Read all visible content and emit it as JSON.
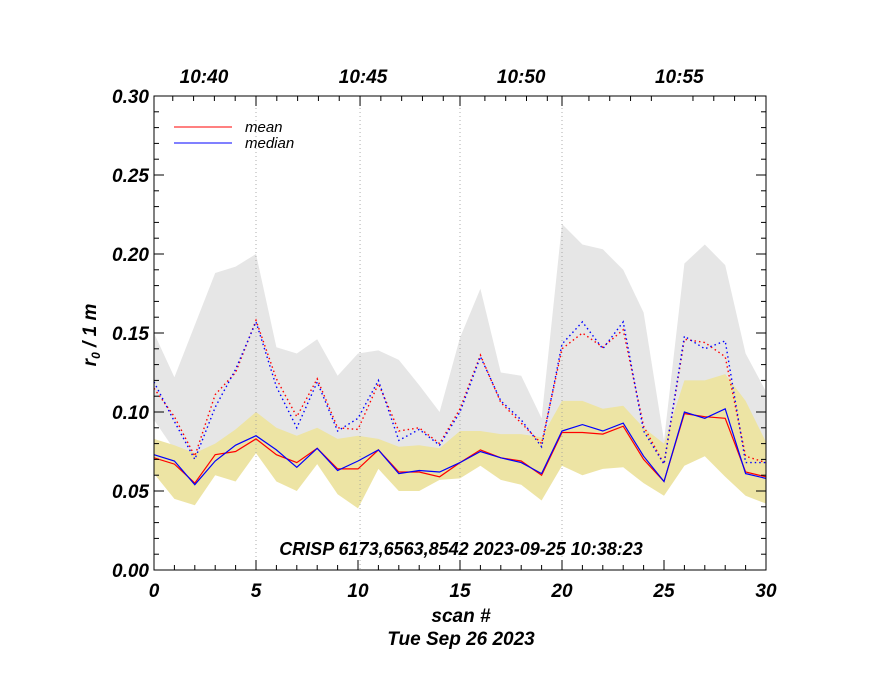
{
  "chart_data": {
    "type": "line",
    "xlabel": "scan #",
    "ylabel_main": "r",
    "ylabel_sub": "0",
    "ylabel_rest": " / 1 m",
    "date_label": "Tue Sep 26 2023",
    "annotation": "CRISP 6173,6563,8542 2023-09-25 10:38:23",
    "xlim": [
      0,
      30
    ],
    "ylim": [
      0,
      0.3
    ],
    "x_ticks": [
      {
        "value": 0,
        "label": "0"
      },
      {
        "value": 5,
        "label": "5"
      },
      {
        "value": 10,
        "label": "10"
      },
      {
        "value": 15,
        "label": "15"
      },
      {
        "value": 20,
        "label": "20"
      },
      {
        "value": 25,
        "label": "25"
      },
      {
        "value": 30,
        "label": "30"
      }
    ],
    "y_ticks": [
      {
        "value": 0.0,
        "label": "0.00"
      },
      {
        "value": 0.05,
        "label": "0.05"
      },
      {
        "value": 0.1,
        "label": "0.10"
      },
      {
        "value": 0.15,
        "label": "0.15"
      },
      {
        "value": 0.2,
        "label": "0.20"
      },
      {
        "value": 0.25,
        "label": "0.25"
      },
      {
        "value": 0.3,
        "label": "0.30"
      }
    ],
    "top_ticks": [
      {
        "value": 5.0,
        "label": "10:40",
        "label_pos": 2.45
      },
      {
        "value": 10.1,
        "label": "10:45",
        "label_pos": 10.25
      },
      {
        "value": 15.0,
        "label": "10:50",
        "label_pos": 18.0
      },
      {
        "value": 20.0,
        "label": "10:55",
        "label_pos": 25.75
      }
    ],
    "x": [
      0,
      1,
      2,
      3,
      4,
      5,
      6,
      7,
      8,
      9,
      10,
      11,
      12,
      13,
      14,
      15,
      16,
      17,
      18,
      19,
      20,
      21,
      22,
      23,
      24,
      25,
      26,
      27,
      28,
      29,
      30
    ],
    "band_gray": {
      "upper": [
        0.15,
        0.122,
        0.155,
        0.188,
        0.192,
        0.2,
        0.141,
        0.137,
        0.146,
        0.123,
        0.137,
        0.139,
        0.133,
        0.117,
        0.1,
        0.147,
        0.178,
        0.125,
        0.123,
        0.096,
        0.219,
        0.206,
        0.203,
        0.19,
        0.163,
        0.082,
        0.194,
        0.206,
        0.193,
        0.137,
        0.113
      ],
      "lower": [
        0.095,
        0.076,
        0.057,
        0.067,
        0.078,
        0.091,
        0.078,
        0.072,
        0.083,
        0.064,
        0.08,
        0.081,
        0.07,
        0.069,
        0.063,
        0.079,
        0.082,
        0.081,
        0.081,
        0.069,
        0.088,
        0.091,
        0.091,
        0.096,
        0.082,
        0.062,
        0.091,
        0.099,
        0.091,
        0.066,
        0.058
      ]
    },
    "band_yellow": {
      "upper": [
        0.083,
        0.079,
        0.074,
        0.08,
        0.089,
        0.1,
        0.09,
        0.085,
        0.09,
        0.083,
        0.085,
        0.083,
        0.078,
        0.079,
        0.077,
        0.088,
        0.088,
        0.086,
        0.086,
        0.084,
        0.107,
        0.107,
        0.102,
        0.104,
        0.09,
        0.08,
        0.12,
        0.12,
        0.124,
        0.107,
        0.081
      ],
      "lower": [
        0.061,
        0.045,
        0.041,
        0.06,
        0.056,
        0.074,
        0.056,
        0.05,
        0.067,
        0.048,
        0.039,
        0.064,
        0.05,
        0.05,
        0.057,
        0.058,
        0.066,
        0.057,
        0.054,
        0.044,
        0.066,
        0.06,
        0.064,
        0.065,
        0.055,
        0.047,
        0.066,
        0.072,
        0.059,
        0.047,
        0.042
      ]
    },
    "series": [
      {
        "name": "mean",
        "color": "#ff0000",
        "style": "solid",
        "values": [
          0.071,
          0.067,
          0.055,
          0.073,
          0.075,
          0.083,
          0.073,
          0.068,
          0.077,
          0.064,
          0.064,
          0.076,
          0.062,
          0.062,
          0.059,
          0.068,
          0.076,
          0.071,
          0.069,
          0.06,
          0.087,
          0.087,
          0.086,
          0.091,
          0.07,
          0.056,
          0.099,
          0.097,
          0.096,
          0.062,
          0.059
        ]
      },
      {
        "name": "median",
        "color": "#0000ff",
        "style": "solid",
        "values": [
          0.073,
          0.069,
          0.054,
          0.069,
          0.079,
          0.085,
          0.076,
          0.065,
          0.077,
          0.063,
          0.069,
          0.076,
          0.061,
          0.063,
          0.062,
          0.068,
          0.075,
          0.071,
          0.068,
          0.061,
          0.088,
          0.092,
          0.088,
          0.093,
          0.072,
          0.056,
          0.1,
          0.096,
          0.102,
          0.061,
          0.058
        ]
      },
      {
        "name": "mean (dotted)",
        "color": "#ff0000",
        "style": "dotted",
        "values": [
          0.115,
          0.097,
          0.072,
          0.111,
          0.125,
          0.158,
          0.121,
          0.097,
          0.121,
          0.09,
          0.089,
          0.118,
          0.088,
          0.09,
          0.08,
          0.102,
          0.136,
          0.106,
          0.093,
          0.08,
          0.14,
          0.15,
          0.141,
          0.152,
          0.091,
          0.067,
          0.146,
          0.144,
          0.135,
          0.072,
          0.068
        ]
      },
      {
        "name": "median (dotted)",
        "color": "#0000ff",
        "style": "dotted",
        "values": [
          0.119,
          0.094,
          0.07,
          0.103,
          0.127,
          0.157,
          0.116,
          0.09,
          0.119,
          0.088,
          0.096,
          0.12,
          0.082,
          0.089,
          0.079,
          0.1,
          0.135,
          0.107,
          0.095,
          0.078,
          0.143,
          0.157,
          0.14,
          0.157,
          0.088,
          0.067,
          0.148,
          0.14,
          0.145,
          0.068,
          0.068
        ]
      }
    ],
    "legend": [
      {
        "label": "mean",
        "color": "#ff0000"
      },
      {
        "label": "median",
        "color": "#0000ff"
      }
    ],
    "legend_position": "top-left",
    "colors": {
      "gray_band": "#e6e6e6",
      "yellow_band": "#ede4a4",
      "grid": "#999999",
      "axis": "#000000"
    }
  }
}
